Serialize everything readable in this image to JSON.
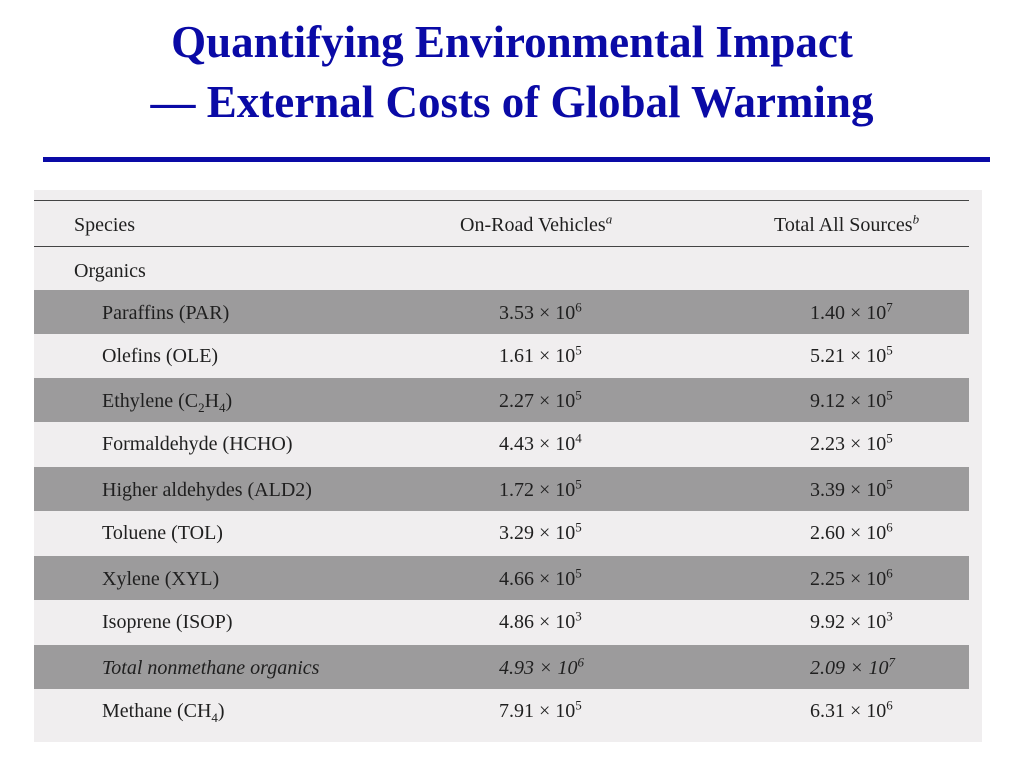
{
  "slide": {
    "title_line1": "Quantifying Environmental Impact",
    "title_line2": "— External Costs of Global Warming"
  },
  "table": {
    "headers": {
      "species": "Species",
      "on_road": "On-Road Vehicles",
      "on_road_note": "a",
      "total": "Total All Sources",
      "total_note": "b"
    },
    "section_label": "Organics",
    "rows": [
      {
        "name": "Paraffins (PAR)",
        "on_road": {
          "m": "3.53",
          "e": "6"
        },
        "total": {
          "m": "1.40",
          "e": "7"
        },
        "shaded": true,
        "italic": false
      },
      {
        "name": "Olefins (OLE)",
        "on_road": {
          "m": "1.61",
          "e": "5"
        },
        "total": {
          "m": "5.21",
          "e": "5"
        },
        "shaded": false,
        "italic": false
      },
      {
        "name_pre": "Ethylene (C",
        "name_sub1": "2",
        "name_mid": "H",
        "name_sub2": "4",
        "name_post": ")",
        "on_road": {
          "m": "2.27",
          "e": "5"
        },
        "total": {
          "m": "9.12",
          "e": "5"
        },
        "shaded": true,
        "italic": false
      },
      {
        "name": "Formaldehyde (HCHO)",
        "on_road": {
          "m": "4.43",
          "e": "4"
        },
        "total": {
          "m": "2.23",
          "e": "5"
        },
        "shaded": false,
        "italic": false
      },
      {
        "name": "Higher aldehydes (ALD2)",
        "on_road": {
          "m": "1.72",
          "e": "5"
        },
        "total": {
          "m": "3.39",
          "e": "5"
        },
        "shaded": true,
        "italic": false
      },
      {
        "name": "Toluene (TOL)",
        "on_road": {
          "m": "3.29",
          "e": "5"
        },
        "total": {
          "m": "2.60",
          "e": "6"
        },
        "shaded": false,
        "italic": false
      },
      {
        "name": "Xylene (XYL)",
        "on_road": {
          "m": "4.66",
          "e": "5"
        },
        "total": {
          "m": "2.25",
          "e": "6"
        },
        "shaded": true,
        "italic": false
      },
      {
        "name": "Isoprene (ISOP)",
        "on_road": {
          "m": "4.86",
          "e": "3"
        },
        "total": {
          "m": "9.92",
          "e": "3"
        },
        "shaded": false,
        "italic": false
      },
      {
        "name": "Total nonmethane organics",
        "on_road": {
          "m": "4.93",
          "e": "6"
        },
        "total": {
          "m": "2.09",
          "e": "7"
        },
        "shaded": true,
        "italic": true
      },
      {
        "name_pre": "Methane (CH",
        "name_sub1": "4",
        "name_post": ")",
        "on_road": {
          "m": "7.91",
          "e": "5"
        },
        "total": {
          "m": "6.31",
          "e": "6"
        },
        "shaded": false,
        "italic": false
      }
    ],
    "times": "× 10"
  }
}
